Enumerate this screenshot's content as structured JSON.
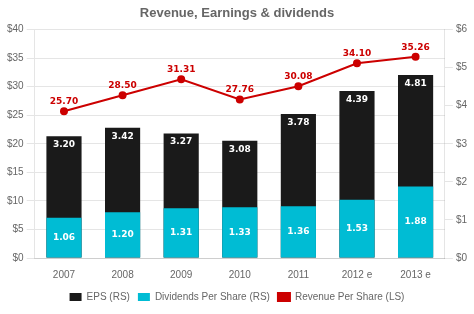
{
  "chart_data": {
    "type": "bar",
    "title": "Revenue, Earnings & dividends",
    "categories": [
      "2007",
      "2008",
      "2009",
      "2010",
      "2011",
      "2012 e",
      "2013 e"
    ],
    "series": [
      {
        "name": "EPS (RS)",
        "type": "bar",
        "axis": "y2",
        "color": "#1a1a1a",
        "values": [
          3.2,
          3.42,
          3.27,
          3.08,
          3.78,
          4.39,
          4.81
        ],
        "value_labels": [
          "3.20",
          "3.42",
          "3.27",
          "3.08",
          "3.78",
          "4.39",
          "4.81"
        ]
      },
      {
        "name": "Dividends Per Share (RS)",
        "type": "bar",
        "axis": "y2",
        "color": "#00bcd4",
        "values": [
          1.06,
          1.2,
          1.31,
          1.33,
          1.36,
          1.53,
          1.88
        ],
        "value_labels": [
          "1.06",
          "1.20",
          "1.31",
          "1.33",
          "1.36",
          "1.53",
          "1.88"
        ]
      },
      {
        "name": "Revenue Per Share (LS)",
        "type": "line",
        "axis": "y",
        "color": "#cc0000",
        "marker": "circle",
        "values": [
          25.7,
          28.5,
          31.31,
          27.76,
          30.08,
          34.1,
          35.26
        ],
        "value_labels": [
          "25.70",
          "28.50",
          "31.31",
          "27.76",
          "30.08",
          "34.10",
          "35.26"
        ]
      }
    ],
    "ylim": [
      0,
      40
    ],
    "yticks": [
      {
        "value": 0,
        "label": "$0"
      },
      {
        "value": 5,
        "label": "$5"
      },
      {
        "value": 10,
        "label": "$10"
      },
      {
        "value": 15,
        "label": "$15"
      },
      {
        "value": 20,
        "label": "$20"
      },
      {
        "value": 25,
        "label": "$25"
      },
      {
        "value": 30,
        "label": "$30"
      },
      {
        "value": 35,
        "label": "$35"
      },
      {
        "value": 40,
        "label": "$40"
      }
    ],
    "y2lim": [
      0,
      6
    ],
    "y2ticks": [
      {
        "value": 0,
        "label": "$0"
      },
      {
        "value": 1,
        "label": "$1"
      },
      {
        "value": 2,
        "label": "$2"
      },
      {
        "value": 3,
        "label": "$3"
      },
      {
        "value": 4,
        "label": "$4"
      },
      {
        "value": 5,
        "label": "$5"
      },
      {
        "value": 6,
        "label": "$6"
      }
    ],
    "grid": true,
    "legend": "bottom",
    "data_labels": true
  }
}
